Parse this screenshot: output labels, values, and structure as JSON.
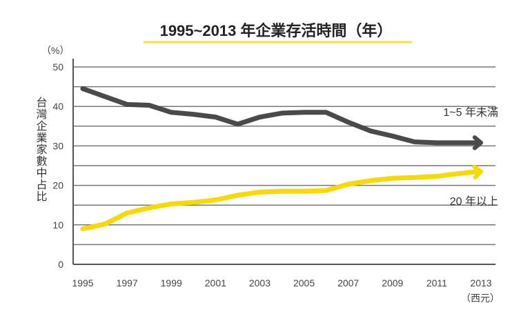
{
  "chart_data": {
    "type": "line",
    "title": "1995~2013 年企業存活時間（年）",
    "ylabel": "台灣企業家數中占比",
    "yunit": "（%）",
    "xunit": "（西元）",
    "ylim": [
      0,
      50
    ],
    "yticks": [
      0,
      10,
      20,
      30,
      40,
      50
    ],
    "xticks": [
      "1995",
      "1997",
      "1999",
      "2001",
      "2003",
      "2005",
      "2007",
      "2009",
      "2011",
      "2013"
    ],
    "grid": true,
    "x": [
      1995,
      1996,
      1997,
      1998,
      1999,
      2000,
      2001,
      2002,
      2003,
      2004,
      2005,
      2006,
      2007,
      2008,
      2009,
      2010,
      2011,
      2012,
      2013
    ],
    "series": [
      {
        "name": "1~5 年未滿",
        "color": "#4a4a4a",
        "values": [
          44.5,
          42.5,
          40.5,
          40.3,
          38.5,
          38,
          37.3,
          35.5,
          37.3,
          38.3,
          38.5,
          38.5,
          36,
          33.8,
          32.5,
          31,
          30.8,
          30.8,
          30.8
        ]
      },
      {
        "name": "20 年以上",
        "color": "#f5d90a",
        "values": [
          9,
          10.2,
          13,
          14.3,
          15.3,
          15.7,
          16.3,
          17.5,
          18.3,
          18.5,
          18.5,
          18.7,
          20.3,
          21.2,
          21.8,
          22,
          22.3,
          23,
          23.5
        ]
      }
    ]
  }
}
